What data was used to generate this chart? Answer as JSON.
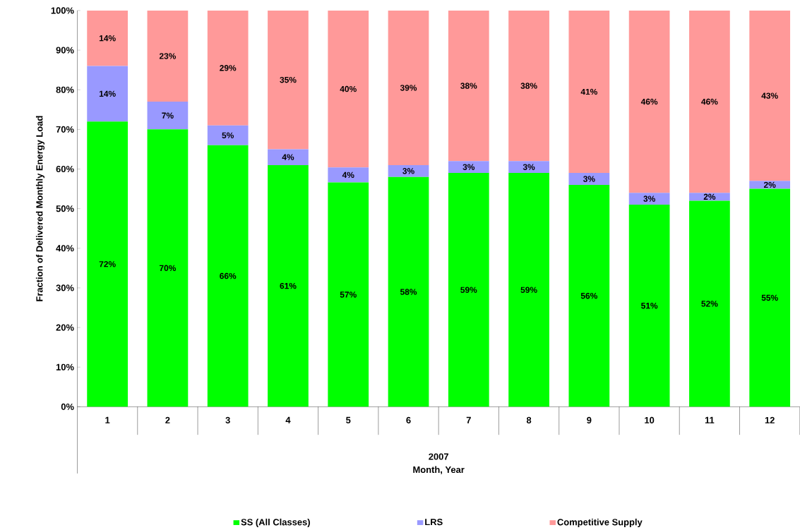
{
  "chart_data": {
    "type": "bar",
    "stacked": true,
    "xlabel": "Month, Year",
    "ylabel": "Fraction of Delivered Monthly Energy Load",
    "annotations": [
      "2007"
    ],
    "categories": [
      "1",
      "2",
      "3",
      "4",
      "5",
      "6",
      "7",
      "8",
      "9",
      "10",
      "11",
      "12"
    ],
    "series": [
      {
        "name": "SS (All Classes)",
        "color": "#00ff00",
        "values": [
          72,
          70,
          66,
          61,
          56.6,
          58,
          59,
          59,
          56,
          51,
          52,
          55
        ],
        "value_labels": [
          "72%",
          "70%",
          "66%",
          "61%",
          "57%",
          "58%",
          "59%",
          "59%",
          "56%",
          "51%",
          "52%",
          "55%"
        ]
      },
      {
        "name": "LRS",
        "color": "#9999ff",
        "values": [
          14,
          7,
          5,
          4,
          3.8,
          3,
          3,
          3,
          3,
          3,
          2,
          2
        ],
        "value_labels": [
          "14%",
          "7%",
          "5%",
          "4%",
          "4%",
          "3%",
          "3%",
          "3%",
          "3%",
          "3%",
          "2%",
          "2%"
        ]
      },
      {
        "name": "Competitive Supply",
        "color": "#ff9999",
        "values": [
          14,
          23,
          29,
          35,
          39.6,
          39,
          38,
          38,
          41,
          46,
          46,
          43
        ],
        "value_labels": [
          "14%",
          "23%",
          "29%",
          "35%",
          "40%",
          "39%",
          "38%",
          "38%",
          "41%",
          "46%",
          "46%",
          "43%"
        ]
      }
    ],
    "ylim": [
      0,
      100
    ],
    "yticks": [
      {
        "value": 0,
        "label": "0%"
      },
      {
        "value": 10,
        "label": "10%"
      },
      {
        "value": 20,
        "label": "20%"
      },
      {
        "value": 30,
        "label": "30%"
      },
      {
        "value": 40,
        "label": "40%"
      },
      {
        "value": 50,
        "label": "50%"
      },
      {
        "value": 60,
        "label": "60%"
      },
      {
        "value": 70,
        "label": "70%"
      },
      {
        "value": 80,
        "label": "80%"
      },
      {
        "value": 90,
        "label": "90%"
      },
      {
        "value": 100,
        "label": "100%"
      }
    ],
    "legend": "bottom"
  }
}
